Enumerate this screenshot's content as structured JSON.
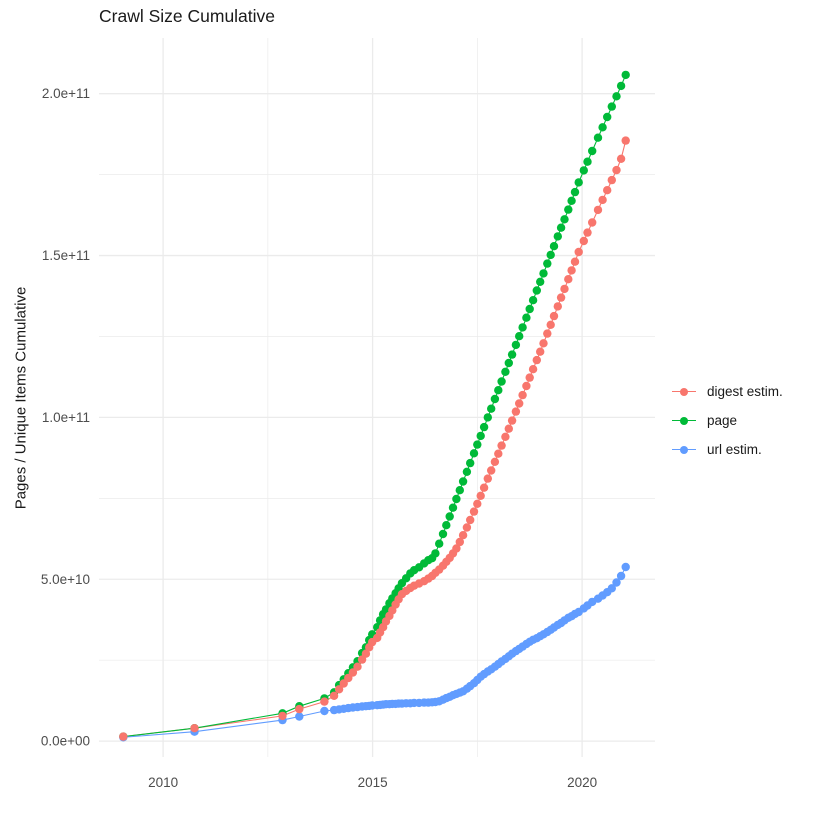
{
  "chart_data": {
    "type": "scatter",
    "title": "Crawl Size Cumulative",
    "xlabel": "",
    "ylabel": "Pages / Unique Items Cumulative",
    "grid": true,
    "legend_position": "right-center",
    "background": "#ffffff",
    "gridline_color": "#ebebeb",
    "tick_label_color": "#4d4d4d",
    "xlim": [
      2008.47,
      2021.74
    ],
    "ylim_e9": [
      -4.9,
      217.2
    ],
    "x_ticks": {
      "major": [
        2010,
        2015,
        2020
      ],
      "minor": [
        2012.5,
        2017.5
      ],
      "labels": [
        "2010",
        "2015",
        "2020"
      ]
    },
    "y_ticks": {
      "major_e9": [
        0,
        50,
        100,
        150,
        200
      ],
      "minor_e9": [
        25,
        75,
        125,
        175
      ],
      "labels": [
        "0.0e+00",
        "5.0e+10",
        "1.0e+11",
        "1.5e+11",
        "2.0e+11"
      ]
    },
    "values_scale": 1000000000.0,
    "x": [
      2009.05,
      2010.75,
      2012.85,
      2013.25,
      2013.85,
      2014.08,
      2014.2,
      2014.31,
      2014.42,
      2014.53,
      2014.64,
      2014.75,
      2014.84,
      2014.92,
      2014.99,
      2015.11,
      2015.18,
      2015.25,
      2015.32,
      2015.4,
      2015.47,
      2015.55,
      2015.62,
      2015.7,
      2015.8,
      2015.9,
      2015.99,
      2016.11,
      2016.23,
      2016.33,
      2016.42,
      2016.5,
      2016.59,
      2016.68,
      2016.76,
      2016.84,
      2016.92,
      2017.0,
      2017.08,
      2017.16,
      2017.25,
      2017.33,
      2017.42,
      2017.5,
      2017.58,
      2017.66,
      2017.75,
      2017.83,
      2017.92,
      2018.0,
      2018.08,
      2018.17,
      2018.25,
      2018.33,
      2018.42,
      2018.5,
      2018.58,
      2018.67,
      2018.75,
      2018.83,
      2018.92,
      2019.0,
      2019.08,
      2019.17,
      2019.25,
      2019.33,
      2019.42,
      2019.5,
      2019.58,
      2019.67,
      2019.75,
      2019.83,
      2019.92,
      2020.04,
      2020.13,
      2020.24,
      2020.38,
      2020.49,
      2020.6,
      2020.71,
      2020.82,
      2020.93,
      2021.04
    ],
    "series": [
      {
        "name": "digest estim.",
        "color": "#F8766D",
        "values_e9": [
          1.4,
          4.0,
          7.8,
          9.9,
          12.2,
          14.0,
          16.0,
          17.8,
          19.5,
          21.2,
          23.0,
          25.2,
          27.0,
          29.0,
          30.6,
          31.9,
          33.6,
          35.2,
          37.0,
          38.7,
          40.4,
          42.2,
          43.8,
          45.4,
          46.4,
          47.3,
          48.0,
          48.7,
          49.4,
          50.2,
          51.0,
          52.0,
          53.0,
          54.2,
          55.4,
          56.6,
          58.0,
          59.5,
          61.5,
          63.6,
          66.0,
          68.3,
          70.9,
          73.3,
          75.8,
          78.3,
          81.1,
          83.6,
          86.3,
          88.8,
          91.3,
          94.0,
          96.5,
          99.0,
          101.8,
          104.3,
          106.9,
          109.7,
          112.3,
          114.9,
          117.7,
          120.3,
          122.9,
          125.9,
          128.6,
          131.3,
          134.3,
          137.0,
          139.7,
          142.7,
          145.4,
          148.1,
          151.1,
          154.5,
          157.1,
          160.2,
          164.1,
          167.2,
          170.2,
          173.3,
          176.4,
          179.9,
          185.5
        ]
      },
      {
        "name": "page",
        "color": "#00BA38",
        "values_e9": [
          1.4,
          4.0,
          8.6,
          10.8,
          13.2,
          15.1,
          17.3,
          19.1,
          21.0,
          22.8,
          24.7,
          27.2,
          29.0,
          31.2,
          33.0,
          35.2,
          37.3,
          39.2,
          40.7,
          42.6,
          44.1,
          45.7,
          47.2,
          48.8,
          50.3,
          51.8,
          52.8,
          53.7,
          54.9,
          55.9,
          56.5,
          58.0,
          61.0,
          64.0,
          66.7,
          69.4,
          72.1,
          74.8,
          77.5,
          80.2,
          83.2,
          85.9,
          88.9,
          91.6,
          94.3,
          97.0,
          100.0,
          102.7,
          105.7,
          108.4,
          111.1,
          114.1,
          116.8,
          119.4,
          122.4,
          125.1,
          127.8,
          130.8,
          133.5,
          136.2,
          139.2,
          141.9,
          144.5,
          147.5,
          150.2,
          152.9,
          155.9,
          158.6,
          161.2,
          164.2,
          166.9,
          169.6,
          172.6,
          176.3,
          179.0,
          182.3,
          186.4,
          189.6,
          192.8,
          196.0,
          199.2,
          202.4,
          205.8
        ]
      },
      {
        "name": "url estim.",
        "color": "#619CFF",
        "values_e9": [
          1.2,
          2.9,
          6.5,
          7.6,
          9.3,
          9.6,
          9.8,
          10.0,
          10.2,
          10.4,
          10.5,
          10.7,
          10.8,
          10.9,
          11.0,
          11.1,
          11.2,
          11.3,
          11.4,
          11.4,
          11.5,
          11.5,
          11.6,
          11.6,
          11.7,
          11.7,
          11.8,
          11.8,
          11.9,
          11.9,
          12.0,
          12.1,
          12.3,
          12.8,
          13.3,
          13.7,
          14.2,
          14.6,
          15.0,
          15.4,
          16.2,
          17.0,
          17.9,
          18.9,
          19.9,
          20.7,
          21.5,
          22.2,
          23.0,
          23.8,
          24.6,
          25.4,
          26.2,
          27.0,
          27.8,
          28.5,
          29.2,
          30.0,
          30.7,
          31.3,
          31.8,
          32.4,
          33.0,
          33.7,
          34.4,
          35.1,
          35.9,
          36.5,
          37.3,
          38.1,
          38.6,
          39.3,
          39.9,
          41.0,
          41.9,
          43.0,
          44.0,
          45.0,
          46.0,
          47.2,
          49.0,
          51.0,
          53.8
        ]
      }
    ]
  }
}
